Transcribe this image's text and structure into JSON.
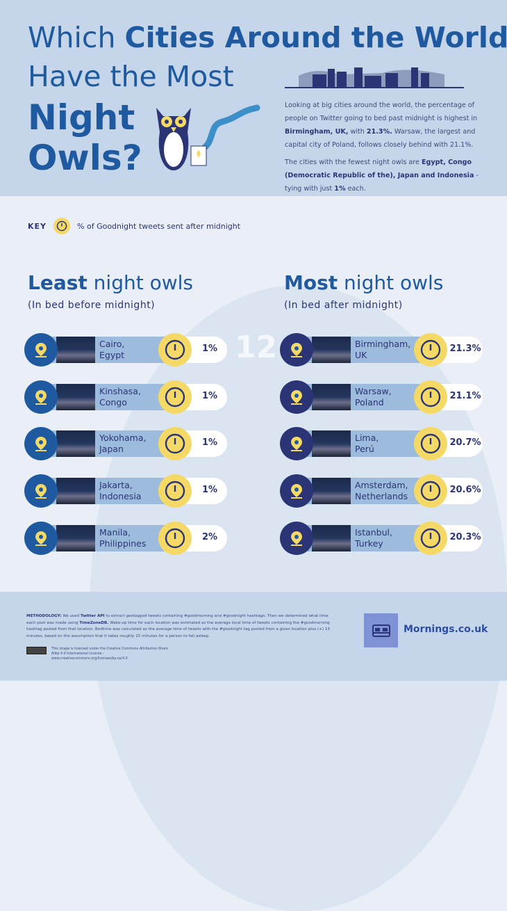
{
  "title": {
    "line1_plain": "Which ",
    "line1_bold": "Cities Around the World",
    "line2": "Have the Most",
    "line3": "Night",
    "line4": "Owls?"
  },
  "intro": {
    "p1": [
      "Looking at big cities around the world, the percentage of people on Twitter going to bed past midnight is highest in ",
      "Birmingham, UK,",
      " with ",
      "21.3%.",
      " Warsaw, the largest and capital city of Poland, follows closely behind with 21.1%."
    ],
    "p2": [
      "The cities with the fewest night owls are ",
      "Egypt, Congo (Democratic Republic of the), Japan and Indonesia",
      " - tying with just ",
      "1%",
      " each."
    ]
  },
  "key": {
    "label": "KEY",
    "text": "% of Goodnight tweets sent after midnight",
    "icon": "clock-icon"
  },
  "clock_numeral": "12",
  "least": {
    "title_bold": "Least",
    "title_rest": " night owls",
    "subtitle": "(In bed before midnight)",
    "items": [
      {
        "city": "Cairo,",
        "country": "Egypt",
        "pct": "1%"
      },
      {
        "city": "Kinshasa,",
        "country": "Congo",
        "pct": "1%"
      },
      {
        "city": "Yokohama,",
        "country": "Japan",
        "pct": "1%"
      },
      {
        "city": "Jakarta,",
        "country": "Indonesia",
        "pct": "1%"
      },
      {
        "city": "Manila,",
        "country": "Philippines",
        "pct": "2%"
      }
    ]
  },
  "most": {
    "title_bold": "Most",
    "title_rest": " night owls",
    "subtitle": "(In bed after midnight)",
    "items": [
      {
        "city": "Birmingham,",
        "country": "UK",
        "pct": "21.3%"
      },
      {
        "city": "Warsaw,",
        "country": "Poland",
        "pct": "21.1%"
      },
      {
        "city": "Lima,",
        "country": "Perú",
        "pct": "20.7%"
      },
      {
        "city": "Amsterdam,",
        "country": "Netherlands",
        "pct": "20.6%"
      },
      {
        "city": "Istanbul,",
        "country": "Turkey",
        "pct": "20.3%"
      }
    ]
  },
  "footer": {
    "methodology": [
      "METHODOLOGY:",
      " We used ",
      "Twitter API",
      " to extract geotagged tweets containing #goodmorning and #goodnight hashtags. Then we determined what time each post was made using ",
      "TimeZoneDB.",
      " Wake-up time for each location was estimated as the average local time of tweets containing the #goodmorning hashtag posted from that location. Bedtime was calculated as the average time of tweets with the #goodnight tag posted from a given location plus (+) 15 minutes, based on the assumption that it takes roughly 15 minutes for a person to fall asleep."
    ],
    "license": "This image is licensed under the Creative Commons Attribution-Share Alike 4.0 International License - www.creativecommons.org/licenses/by-sa/4.0",
    "brand": "Mornings.co.uk"
  },
  "colors": {
    "primary": "#1f5aa0",
    "navy": "#2b3575",
    "yellow": "#f5d967",
    "pill": "#9dbbdd",
    "bg_top": "#c5d6ea",
    "bg_mid": "#e9eef7"
  }
}
